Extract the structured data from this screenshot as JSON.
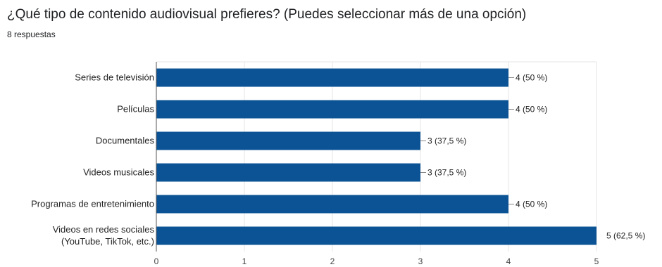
{
  "title": "¿Qué tipo de contenido audiovisual prefieres? (Puedes seleccionar más de una opción)",
  "subtitle": "8 respuestas",
  "colors": {
    "bar": "#0b5394",
    "grid": "#e6e6e6",
    "axis": "#555555"
  },
  "chart_data": {
    "type": "bar",
    "orientation": "horizontal",
    "title": "¿Qué tipo de contenido audiovisual prefieres? (Puedes seleccionar más de una opción)",
    "subtitle": "8 respuestas",
    "categories": [
      [
        "Series de televisión"
      ],
      [
        "Películas"
      ],
      [
        "Documentales"
      ],
      [
        "Videos musicales"
      ],
      [
        "Programas de entretenimiento"
      ],
      [
        "Videos en redes sociales",
        "(YouTube, TikTok, etc.)"
      ]
    ],
    "values": [
      4,
      4,
      3,
      3,
      4,
      5
    ],
    "value_labels": [
      "4 (50 %)",
      "4 (50 %)",
      "3 (37,5 %)",
      "3 (37,5 %)",
      "4 (50 %)",
      "5 (62,5 %)"
    ],
    "xticks": [
      "0",
      "1",
      "2",
      "3",
      "4",
      "5"
    ],
    "xlim": [
      0,
      5
    ],
    "grid": true
  }
}
